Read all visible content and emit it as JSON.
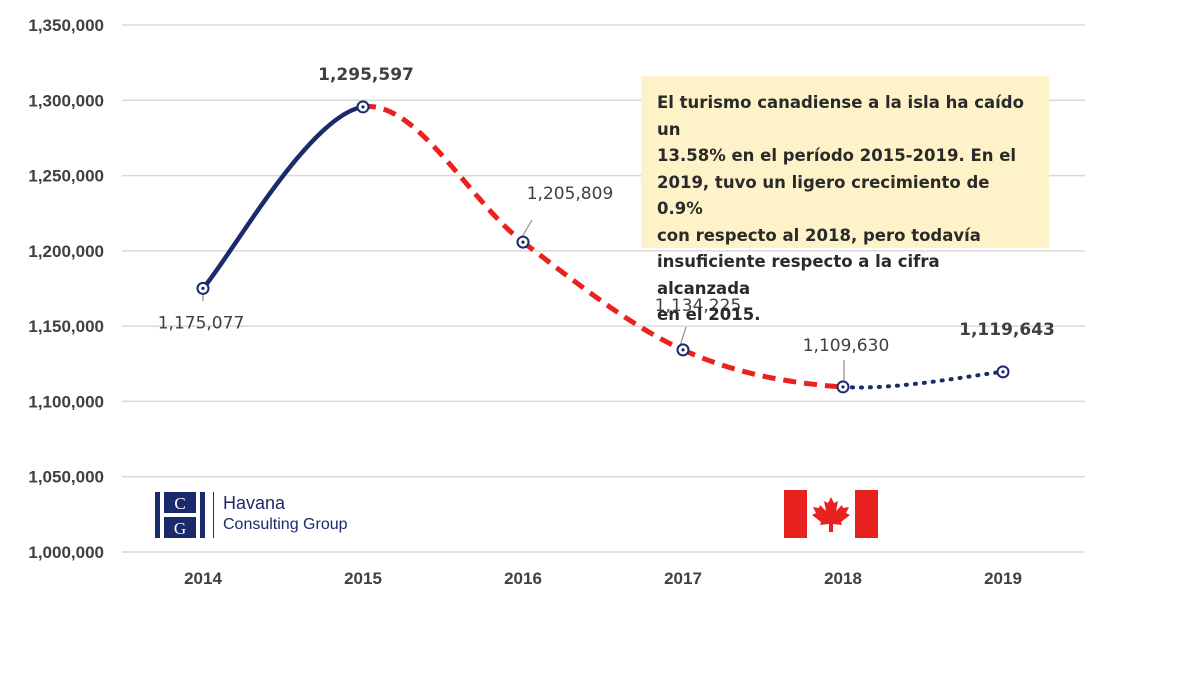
{
  "chart_data": {
    "type": "line",
    "categories": [
      "2014",
      "2015",
      "2016",
      "2017",
      "2018",
      "2019"
    ],
    "values": [
      1175077,
      1295597,
      1205809,
      1134225,
      1109630,
      1119643
    ],
    "data_labels": [
      "1,175,077",
      "1,295,597",
      "1,205,809",
      "1,134,225",
      "1,109,630",
      "1,119,643"
    ],
    "bold_labels": [
      false,
      true,
      false,
      false,
      false,
      true
    ],
    "segment_styles": [
      "solid",
      "dashed",
      "dashed",
      "dashed",
      "dotted"
    ],
    "segment_colors": [
      "#1b2a6b",
      "#e8231f",
      "#e8231f",
      "#e8231f",
      "#1b2a6b"
    ],
    "y_ticks": [
      "1,000,000",
      "1,050,000",
      "1,100,000",
      "1,150,000",
      "1,200,000",
      "1,250,000",
      "1,300,000",
      "1,350,000"
    ],
    "ylim": [
      1000000,
      1350000
    ],
    "grid": true,
    "marker_color": "#1b2a6b",
    "grid_color": "#d9d9d9"
  },
  "annotation": "El turismo canadiense a la isla ha caído un\n13.58% en el período 2015-2019. En el\n2019, tuvo un ligero crecimiento de 0.9%\ncon respecto al 2018, pero todavía\ninsuficiente respecto a la cifra alcanzada\nen el 2015.",
  "logo": {
    "monogram": "CG",
    "line1": "Havana",
    "line2": "Consulting Group"
  },
  "flag": {
    "name": "canada-flag-icon",
    "red": "#e8231f"
  }
}
